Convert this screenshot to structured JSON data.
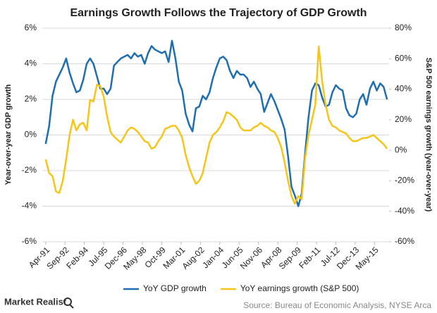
{
  "chart_data": {
    "type": "line",
    "title": "Earnings Growth Follows the Trajectory of GDP Growth",
    "y_label": "Year-over-year GDP growth",
    "y2_label": "S&P 500 earnings growth (year-over-year)",
    "source": "Source: Bureau of Economic  Analysis, NYSE Arca",
    "brand": "Market Realist",
    "grid": true,
    "legend": "bottom",
    "xlim": [
      1991,
      2016.4
    ],
    "xticks": [
      {
        "value": 1991.25,
        "label": "Apr-91"
      },
      {
        "value": 1992.667,
        "label": "Sep-92"
      },
      {
        "value": 1994.083,
        "label": "Feb-94"
      },
      {
        "value": 1995.5,
        "label": "Jul-95"
      },
      {
        "value": 1996.917,
        "label": "Dec-96"
      },
      {
        "value": 1998.333,
        "label": "May-98"
      },
      {
        "value": 1999.75,
        "label": "Oct-99"
      },
      {
        "value": 2001.167,
        "label": "Mar-01"
      },
      {
        "value": 2002.583,
        "label": "Aug-02"
      },
      {
        "value": 2004.0,
        "label": "Jan-04"
      },
      {
        "value": 2005.417,
        "label": "Jun-05"
      },
      {
        "value": 2006.833,
        "label": "Nov-06"
      },
      {
        "value": 2008.25,
        "label": "Apr-08"
      },
      {
        "value": 2009.667,
        "label": "Sep-09"
      },
      {
        "value": 2011.083,
        "label": "Feb-11"
      },
      {
        "value": 2012.5,
        "label": "Jul-12"
      },
      {
        "value": 2013.917,
        "label": "Dec-13"
      },
      {
        "value": 2015.333,
        "label": "May-15"
      }
    ],
    "ylim": [
      -6,
      6
    ],
    "yticks": [
      {
        "value": -6,
        "label": "-6%"
      },
      {
        "value": -4,
        "label": "-4%"
      },
      {
        "value": -2,
        "label": "-2%"
      },
      {
        "value": 0,
        "label": "0%"
      },
      {
        "value": 2,
        "label": "2%"
      },
      {
        "value": 4,
        "label": "4%"
      },
      {
        "value": 6,
        "label": "6%"
      }
    ],
    "y2lim": [
      -60,
      80
    ],
    "y2ticks": [
      {
        "value": -60,
        "label": "-60%"
      },
      {
        "value": -40,
        "label": "-40%"
      },
      {
        "value": -20,
        "label": "-20%"
      },
      {
        "value": 0,
        "label": "0%"
      },
      {
        "value": 20,
        "label": "20%"
      },
      {
        "value": 40,
        "label": "40%"
      },
      {
        "value": 60,
        "label": "60%"
      },
      {
        "value": 80,
        "label": "80%"
      }
    ],
    "x": [
      1991.25,
      1991.5,
      1991.75,
      1992.0,
      1992.25,
      1992.5,
      1992.75,
      1993.0,
      1993.25,
      1993.5,
      1993.75,
      1994.0,
      1994.25,
      1994.5,
      1994.75,
      1995.0,
      1995.25,
      1995.5,
      1995.75,
      1996.0,
      1996.25,
      1996.5,
      1996.75,
      1997.0,
      1997.25,
      1997.5,
      1997.75,
      1998.0,
      1998.25,
      1998.5,
      1998.75,
      1999.0,
      1999.25,
      1999.5,
      1999.75,
      2000.0,
      2000.25,
      2000.5,
      2000.75,
      2001.0,
      2001.25,
      2001.5,
      2001.75,
      2002.0,
      2002.25,
      2002.5,
      2002.75,
      2003.0,
      2003.25,
      2003.5,
      2003.75,
      2004.0,
      2004.25,
      2004.5,
      2004.75,
      2005.0,
      2005.25,
      2005.5,
      2005.75,
      2006.0,
      2006.25,
      2006.5,
      2006.75,
      2007.0,
      2007.25,
      2007.5,
      2007.75,
      2008.0,
      2008.25,
      2008.5,
      2008.75,
      2009.0,
      2009.25,
      2009.5,
      2009.75,
      2010.0,
      2010.25,
      2010.5,
      2010.75,
      2011.0,
      2011.25,
      2011.5,
      2011.75,
      2012.0,
      2012.25,
      2012.5,
      2012.75,
      2013.0,
      2013.25,
      2013.5,
      2013.75,
      2014.0,
      2014.25,
      2014.5,
      2014.75,
      2015.0,
      2015.25,
      2015.5,
      2015.75,
      2016.0,
      2016.25
    ],
    "series": [
      {
        "name": "YoY GDP growth",
        "color": "#1f6eb0",
        "values": [
          -0.5,
          0.5,
          2.2,
          3.0,
          3.4,
          3.8,
          4.3,
          3.5,
          2.9,
          2.4,
          2.5,
          3.1,
          4.0,
          4.3,
          4.0,
          3.3,
          2.6,
          2.6,
          2.3,
          2.6,
          3.9,
          4.1,
          4.3,
          4.4,
          4.5,
          4.3,
          4.6,
          4.4,
          4.5,
          4.0,
          4.6,
          5.0,
          4.8,
          4.7,
          4.6,
          4.7,
          4.1,
          5.3,
          4.3,
          3.0,
          2.5,
          1.2,
          0.6,
          0.2,
          1.5,
          1.6,
          2.2,
          2.0,
          2.4,
          3.2,
          3.8,
          4.3,
          4.4,
          4.2,
          3.6,
          3.2,
          3.6,
          3.4,
          3.4,
          3.2,
          2.7,
          3.0,
          2.6,
          2.3,
          1.3,
          1.8,
          2.3,
          1.9,
          1.4,
          0.9,
          0.3,
          -1.2,
          -2.9,
          -3.4,
          -4.0,
          -3.3,
          -1.0,
          1.0,
          2.5,
          2.9,
          2.8,
          2.1,
          1.6,
          1.7,
          2.4,
          2.8,
          2.6,
          2.5,
          1.5,
          1.1,
          1.0,
          1.2,
          2.0,
          2.3,
          1.7,
          2.6,
          3.0,
          2.5,
          2.9,
          2.7,
          2.0
        ]
      },
      {
        "name": "YoY earnings growth (S&P 500)",
        "color": "#f5c518",
        "axis": "y2",
        "values": [
          -6,
          -15,
          -17,
          -27,
          -28,
          -20,
          -6,
          10,
          20,
          13,
          17,
          18,
          13,
          33,
          32,
          43,
          42,
          35,
          22,
          12,
          9,
          7,
          5,
          9,
          13,
          15,
          14,
          12,
          9,
          6,
          5,
          1,
          2,
          6,
          9,
          14,
          15,
          16,
          16,
          13,
          8,
          -3,
          -11,
          -17,
          -22,
          -20,
          -15,
          -5,
          5,
          10,
          12,
          15,
          19,
          25,
          24,
          22,
          20,
          15,
          13,
          13,
          13,
          15,
          16,
          18,
          16,
          15,
          13,
          12,
          8,
          2,
          -8,
          -20,
          -30,
          -35,
          -30,
          -32,
          -5,
          10,
          20,
          30,
          68,
          45,
          30,
          20,
          16,
          15,
          13,
          12,
          11,
          8,
          6,
          6,
          7,
          8,
          8,
          9,
          10,
          8,
          6,
          4,
          1
        ]
      }
    ]
  }
}
